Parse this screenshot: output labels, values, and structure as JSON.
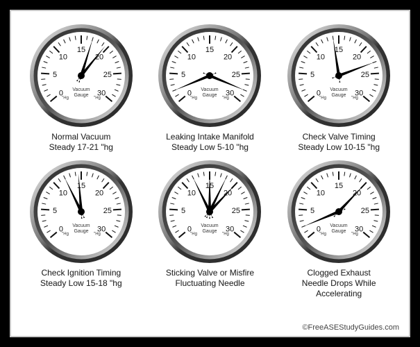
{
  "gauge": {
    "min": 0,
    "max": 30,
    "start_angle_deg": 220,
    "end_angle_deg": -40,
    "major_step": 5,
    "minor_step": 1,
    "radius": 60,
    "bezel_outer": 74,
    "bezel_inner": 63,
    "tick_inner_major": 46,
    "tick_inner_minor": 52,
    "tick_outer": 58,
    "label_radius": 38,
    "bezel_grad_light": "#efefef",
    "bezel_grad_dark": "#2a2a2a",
    "face_color": "#ffffff",
    "tick_color": "#111111",
    "needle_color": "#000000",
    "label_fontsize": 11,
    "small_label_fontsize": 6,
    "small_label_left": "\"Hg",
    "small_label_right": "\"Hg",
    "center_text_top": "Vacuum",
    "center_text_bottom": "Gauge"
  },
  "gauges": [
    {
      "id": "normal",
      "needles": [
        19.5,
        17
      ],
      "caption_l1": "Normal Vacuum",
      "caption_l2": "Steady 17-21 \"hg"
    },
    {
      "id": "intake-leak",
      "needles": [
        2,
        28
      ],
      "caption_l1": "Leaking Intake Manifold",
      "caption_l2": "Steady Low 5-10 \"hg"
    },
    {
      "id": "valve-timing",
      "needles": [
        14,
        23
      ],
      "caption_l1": "Check Valve Timing",
      "caption_l2": "Steady Low 10-15 \"hg"
    },
    {
      "id": "ignition-timing",
      "needles": [
        12,
        14.5
      ],
      "caption_l1": "Check Ignition Timing",
      "caption_l2": "Steady Low 15-18 \"hg"
    },
    {
      "id": "sticking-valve",
      "needles": [
        12,
        15,
        18,
        20
      ],
      "caption_l1": "Sticking Valve or Misfire",
      "caption_l2": "Fluctuating Needle"
    },
    {
      "id": "clogged-exhaust",
      "needles": [
        2,
        20
      ],
      "caption_l1": "Clogged Exhaust",
      "caption_l2": "Needle Drops While Accelerating"
    }
  ],
  "footer_text": "©FreeASEStudyGuides.com"
}
